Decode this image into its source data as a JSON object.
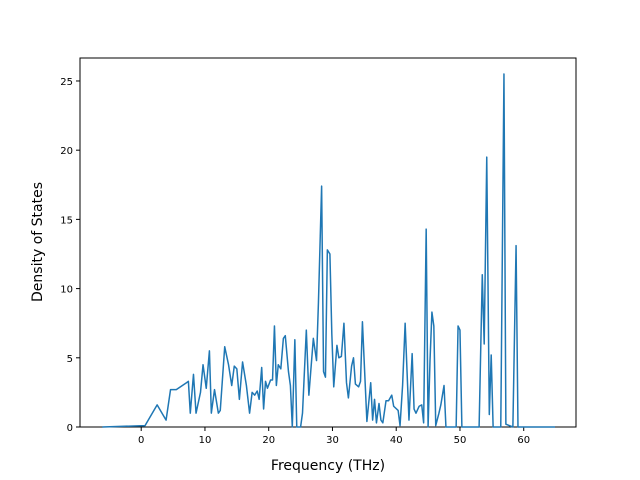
{
  "chart_data": {
    "type": "line",
    "x_label": "Frequency (THz)",
    "y_label": "Density of States",
    "xlim": [
      -9.6,
      68.2
    ],
    "ylim": [
      0,
      26.66
    ],
    "xticks": [
      0,
      10,
      20,
      30,
      40,
      50,
      60
    ],
    "yticks": [
      0,
      5,
      10,
      15,
      20,
      25
    ],
    "x": [
      -6.1,
      0.6,
      2.5,
      3.9,
      4.6,
      5.5,
      7.1,
      7.4,
      7.7,
      8.2,
      8.6,
      9.3,
      9.7,
      10.2,
      10.7,
      11.0,
      11.5,
      12.1,
      12.4,
      13.1,
      13.7,
      14.2,
      14.6,
      15.0,
      15.4,
      15.9,
      16.5,
      17.0,
      17.4,
      17.8,
      18.2,
      18.5,
      18.9,
      19.2,
      19.5,
      19.8,
      20.3,
      20.6,
      20.9,
      21.2,
      21.5,
      21.9,
      22.3,
      22.6,
      23.1,
      23.4,
      23.7,
      24.1,
      24.4,
      25.0,
      25.3,
      25.9,
      26.3,
      27.0,
      27.5,
      27.8,
      28.3,
      28.6,
      28.9,
      29.2,
      29.6,
      29.9,
      30.2,
      30.7,
      31.0,
      31.4,
      31.8,
      32.2,
      32.5,
      33.0,
      33.3,
      33.6,
      34.1,
      34.4,
      34.7,
      35.0,
      35.4,
      36.0,
      36.3,
      36.6,
      36.9,
      37.3,
      37.6,
      37.9,
      38.4,
      38.8,
      39.3,
      39.6,
      40.3,
      40.6,
      41.0,
      41.4,
      41.7,
      42.0,
      42.5,
      42.8,
      43.1,
      43.6,
      44.0,
      44.3,
      44.7,
      45.0,
      45.3,
      45.6,
      45.9,
      46.2,
      46.7,
      47.0,
      47.5,
      47.8,
      49.4,
      49.7,
      50.0,
      50.3,
      53.0,
      53.5,
      53.8,
      54.2,
      54.6,
      54.9,
      55.2,
      56.4,
      56.9,
      57.2,
      58.3,
      58.8,
      59.1,
      64.9
    ],
    "series": [
      {
        "color": "#1f77b4",
        "values": [
          0,
          0.1,
          1.6,
          0.5,
          2.7,
          2.7,
          3.2,
          3.3,
          1.0,
          3.8,
          1.0,
          2.5,
          4.5,
          2.8,
          5.5,
          1.0,
          2.7,
          1.0,
          1.2,
          5.8,
          4.5,
          3.0,
          4.4,
          4.2,
          2.0,
          4.7,
          3.0,
          1.0,
          2.5,
          2.3,
          2.6,
          2.0,
          4.3,
          1.3,
          3.3,
          2.8,
          3.4,
          3.4,
          7.3,
          3.0,
          4.5,
          4.2,
          6.4,
          6.6,
          4.0,
          3.0,
          0,
          6.3,
          0,
          0,
          1.0,
          7.0,
          2.3,
          6.4,
          4.8,
          9.0,
          17.4,
          4.0,
          3.6,
          12.8,
          12.5,
          6.7,
          2.9,
          5.9,
          5.0,
          5.1,
          7.5,
          3.2,
          2.1,
          4.4,
          5.0,
          3.1,
          2.9,
          3.3,
          7.6,
          4.5,
          0.4,
          3.2,
          0.5,
          2.0,
          0.3,
          1.7,
          0.5,
          0.3,
          1.9,
          1.9,
          2.3,
          1.5,
          1.2,
          0.1,
          3.0,
          7.5,
          4.0,
          0.5,
          5.3,
          1.3,
          1.0,
          1.5,
          1.6,
          0.3,
          14.3,
          0,
          4.8,
          8.3,
          7.3,
          0.1,
          1.0,
          1.6,
          3.0,
          0,
          0,
          7.3,
          7.0,
          0,
          0,
          11.0,
          6.0,
          19.5,
          0.9,
          5.2,
          0,
          0,
          25.5,
          0.2,
          0,
          13.1,
          0,
          0
        ]
      }
    ]
  }
}
